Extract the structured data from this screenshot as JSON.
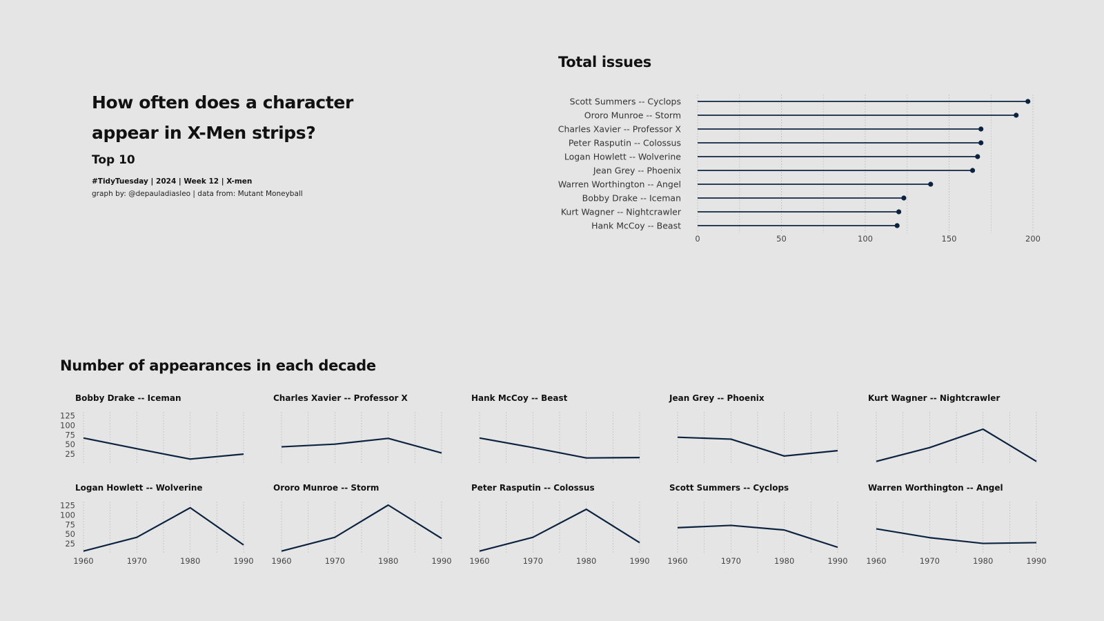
{
  "header": {
    "title": "How often does a character appear in X-Men strips?",
    "subtitle": "Top 10",
    "tag": "#TidyTuesday | 2024 | Week 12 | X-men",
    "credit": "graph by: @depauladiasleo | data from: Mutant Moneyball"
  },
  "colors": {
    "background": "#e5e5e5",
    "line": "#0c2340",
    "grid": "#bdbdbd"
  },
  "chart_data": [
    {
      "type": "lollipop",
      "title": "Total issues",
      "categories": [
        "Scott Summers -- Cyclops",
        "Ororo Munroe -- Storm",
        "Charles Xavier -- Professor X",
        "Peter Rasputin -- Colossus",
        "Logan Howlett -- Wolverine",
        "Jean Grey -- Phoenix",
        "Warren Worthington -- Angel",
        "Bobby Drake -- Iceman",
        "Kurt Wagner -- Nightcrawler",
        "Hank McCoy -- Beast"
      ],
      "values": [
        197,
        190,
        169,
        169,
        167,
        164,
        139,
        123,
        120,
        119
      ],
      "xlim": [
        0,
        200
      ],
      "xticks": [
        0,
        50,
        100,
        150,
        200
      ],
      "grid": true
    },
    {
      "type": "line",
      "title": "Number of appearances in each decade",
      "x": [
        1960,
        1970,
        1980,
        1990
      ],
      "xticks": [
        "1960",
        "1970",
        "1980",
        "1990"
      ],
      "yticks": [
        "25",
        "50",
        "75",
        "100",
        "125"
      ],
      "ylim": [
        0,
        135
      ],
      "grid": true,
      "panels": [
        {
          "name": "Bobby Drake -- Iceman",
          "values": [
            67,
            39,
            12,
            25
          ]
        },
        {
          "name": "Charles Xavier -- Professor X",
          "values": [
            44,
            51,
            66,
            28
          ]
        },
        {
          "name": "Hank McCoy -- Beast",
          "values": [
            67,
            42,
            15,
            16
          ]
        },
        {
          "name": "Jean Grey -- Phoenix",
          "values": [
            69,
            64,
            20,
            34
          ]
        },
        {
          "name": "Kurt Wagner -- Nightcrawler",
          "values": [
            6,
            42,
            90,
            6
          ]
        },
        {
          "name": "Logan Howlett -- Wolverine",
          "values": [
            6,
            42,
            119,
            22
          ]
        },
        {
          "name": "Ororo Munroe -- Storm",
          "values": [
            6,
            42,
            126,
            39
          ]
        },
        {
          "name": "Peter Rasputin -- Colossus",
          "values": [
            6,
            42,
            115,
            28
          ]
        },
        {
          "name": "Scott Summers -- Cyclops",
          "values": [
            67,
            73,
            61,
            16
          ]
        },
        {
          "name": "Warren Worthington -- Angel",
          "values": [
            64,
            41,
            26,
            28
          ]
        }
      ]
    }
  ]
}
